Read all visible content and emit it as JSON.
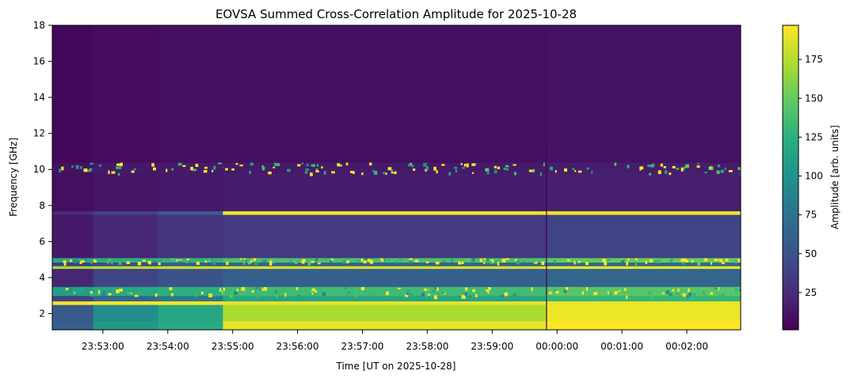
{
  "chart_data": {
    "type": "heatmap",
    "title": "EOVSA Summed Cross-Correlation Amplitude for 2025-10-28",
    "xlabel": "Time [UT on 2025-10-28]",
    "ylabel": "Frequency [GHz]",
    "colorbar_label": "Amplitude [arb. units]",
    "colormap": "viridis",
    "color_range": [
      1,
      197
    ],
    "colorbar_ticks": [
      25,
      50,
      75,
      100,
      125,
      150,
      175
    ],
    "ylim": [
      1.1,
      18
    ],
    "yticks": [
      2,
      4,
      6,
      8,
      10,
      12,
      14,
      16,
      18
    ],
    "xlim_minutes": [
      -7.78,
      2.83
    ],
    "xticks": [
      {
        "label": "23:53:00",
        "minutes": -7
      },
      {
        "label": "23:54:00",
        "minutes": -6
      },
      {
        "label": "23:55:00",
        "minutes": -5
      },
      {
        "label": "23:56:00",
        "minutes": -4
      },
      {
        "label": "23:57:00",
        "minutes": -3
      },
      {
        "label": "23:58:00",
        "minutes": -2
      },
      {
        "label": "23:59:00",
        "minutes": -1
      },
      {
        "label": "00:00:00",
        "minutes": 0
      },
      {
        "label": "00:01:00",
        "minutes": 1
      },
      {
        "label": "00:02:00",
        "minutes": 2
      }
    ],
    "time_segment_edges_minutes": [
      -7.78,
      -7.15,
      -6.15,
      -5.15,
      -0.17,
      2.83
    ],
    "bands": [
      {
        "f": [
          1.1,
          1.6
        ],
        "values": [
          60,
          105,
          120,
          190,
          197
        ]
      },
      {
        "f": [
          1.6,
          2.5
        ],
        "values": [
          55,
          95,
          115,
          172,
          192
        ]
      },
      {
        "f": [
          2.5,
          2.7
        ],
        "values": [
          195,
          195,
          195,
          190,
          192
        ]
      },
      {
        "f": [
          2.7,
          3.0
        ],
        "values": [
          40,
          65,
          80,
          115,
          130
        ]
      },
      {
        "f": [
          3.0,
          3.5
        ],
        "values": [
          110,
          120,
          125,
          135,
          145
        ],
        "rfi": true
      },
      {
        "f": [
          3.5,
          4.5
        ],
        "values": [
          22,
          40,
          50,
          60,
          65
        ]
      },
      {
        "f": [
          4.5,
          4.65
        ],
        "values": [
          170,
          175,
          180,
          185,
          190
        ]
      },
      {
        "f": [
          4.65,
          4.85
        ],
        "values": [
          35,
          45,
          55,
          60,
          65
        ]
      },
      {
        "f": [
          4.85,
          5.1
        ],
        "values": [
          120,
          125,
          130,
          140,
          150
        ],
        "rfi": true
      },
      {
        "f": [
          5.1,
          7.5
        ],
        "values": [
          14,
          22,
          30,
          34,
          40
        ]
      },
      {
        "f": [
          7.5,
          7.7
        ],
        "values": [
          25,
          40,
          60,
          192,
          192
        ]
      },
      {
        "f": [
          7.7,
          9.8
        ],
        "values": [
          8,
          12,
          14,
          16,
          18
        ]
      },
      {
        "f": [
          9.8,
          10.4
        ],
        "values": [
          10,
          14,
          15,
          15,
          16
        ],
        "rfi": true
      },
      {
        "f": [
          10.4,
          18
        ],
        "values": [
          5,
          7,
          8,
          9,
          10
        ]
      }
    ],
    "grid": false
  }
}
